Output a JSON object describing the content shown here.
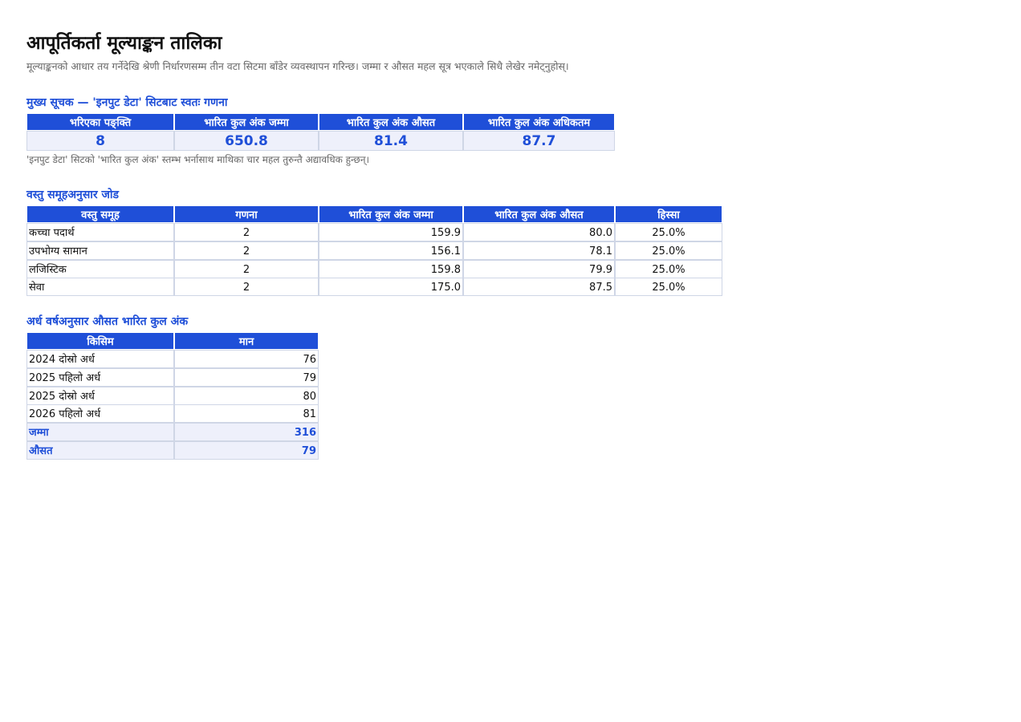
{
  "header": {
    "title": "आपूर्तिकर्ता मूल्याङ्कन तालिका",
    "subtitle": "मूल्याङ्कनको आधार तय गर्नेदेखि श्रेणी निर्धारणसम्म तीन वटा सिटमा बाँडेर व्यवस्थापन गरिन्छ। जम्मा र औसत महल सूत्र भएकाले सिधै लेखेर नमेट्नुहोस्।"
  },
  "kpi": {
    "heading": "मुख्य सूचक — 'इनपुट डेटा' सिटबाट स्वतः गणना",
    "headers": [
      "भरिएका पङ्क्ति",
      "भारित कुल अंक जम्मा",
      "भारित कुल अंक औसत",
      "भारित कुल अंक अधिकतम"
    ],
    "values": [
      "8",
      "650.8",
      "81.4",
      "87.7"
    ],
    "note": "'इनपुट डेटा' सिटको 'भारित कुल अंक' स्तम्भ भर्नासाथ माथिका चार महल तुरुन्तै अद्यावधिक हुन्छन्।"
  },
  "groups": {
    "heading": "वस्तु समूहअनुसार जोड",
    "headers": [
      "वस्तु समूह",
      "गणना",
      "भारित कुल अंक जम्मा",
      "भारित कुल अंक औसत",
      "हिस्सा"
    ],
    "rows": [
      [
        "कच्चा पदार्थ",
        "2",
        "159.9",
        "80.0",
        "25.0%"
      ],
      [
        "उपभोग्य सामान",
        "2",
        "156.1",
        "78.1",
        "25.0%"
      ],
      [
        "लजिस्टिक",
        "2",
        "159.8",
        "79.9",
        "25.0%"
      ],
      [
        "सेवा",
        "2",
        "175.0",
        "87.5",
        "25.0%"
      ]
    ]
  },
  "halfyear": {
    "heading": "अर्ध वर्षअनुसार औसत भारित कुल अंक",
    "headers": [
      "किसिम",
      "मान"
    ],
    "rows": [
      [
        "2024 दोस्रो अर्ध",
        "76"
      ],
      [
        "2025 पहिलो अर्ध",
        "79"
      ],
      [
        "2025 दोस्रो अर्ध",
        "80"
      ],
      [
        "2026 पहिलो अर्ध",
        "81"
      ]
    ],
    "summary_rows": [
      [
        "जम्मा",
        "316"
      ],
      [
        "औसत",
        "79"
      ]
    ]
  }
}
